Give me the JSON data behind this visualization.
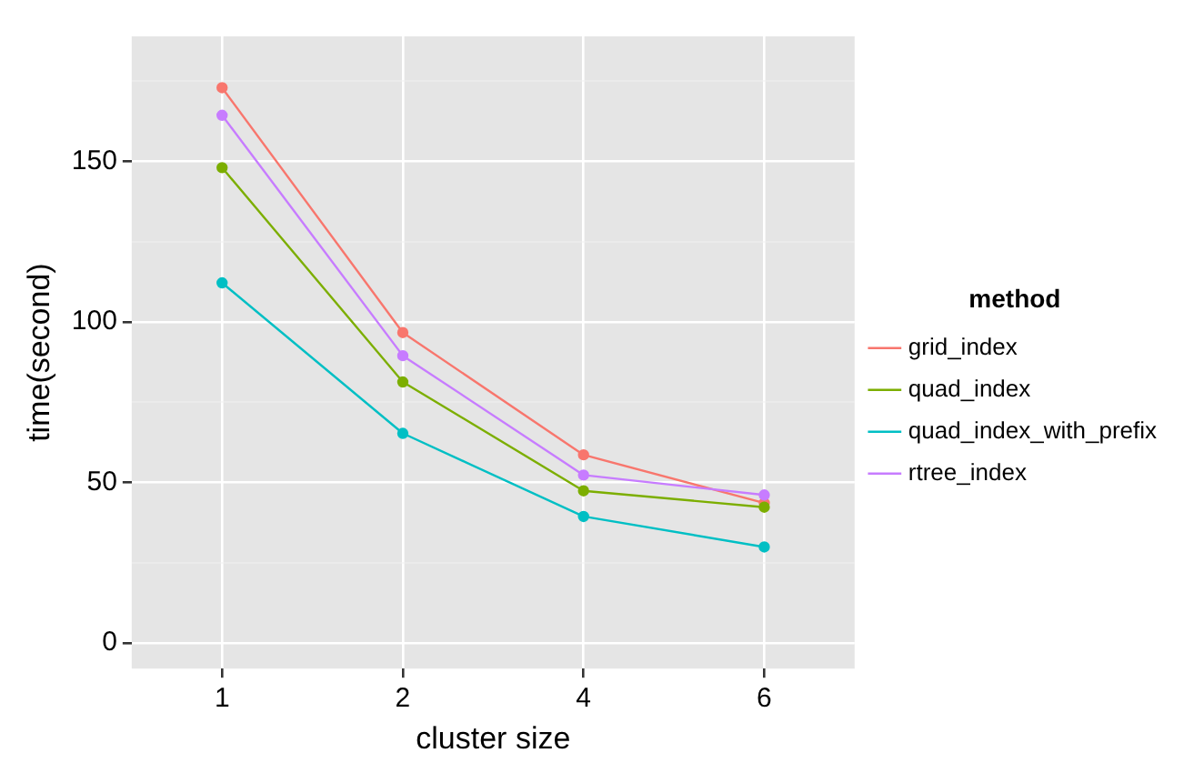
{
  "chart_data": {
    "type": "line",
    "xlabel": "cluster size",
    "ylabel": "time(second)",
    "legend_title": "method",
    "categories": [
      "1",
      "2",
      "4",
      "6"
    ],
    "series": [
      {
        "name": "grid_index",
        "color": "#f8766d",
        "values": [
          173,
          96.7,
          58.6,
          43.6
        ]
      },
      {
        "name": "quad_index",
        "color": "#7cae00",
        "values": [
          148.1,
          81.3,
          47.4,
          42.3
        ]
      },
      {
        "name": "quad_index_with_prefix",
        "color": "#00bfc4",
        "values": [
          112.2,
          65.3,
          39.4,
          29.9
        ]
      },
      {
        "name": "rtree_index",
        "color": "#c77cff",
        "values": [
          164.4,
          89.5,
          52.3,
          46.1
        ]
      }
    ],
    "ylim": [
      -8,
      189
    ],
    "yticks": [
      0,
      {
        "value": 25,
        "label": null
      },
      50,
      {
        "value": 75,
        "label": null
      },
      100,
      {
        "value": 125,
        "label": null
      },
      150,
      {
        "value": 175,
        "label": null
      }
    ],
    "grid": true,
    "legend": "right",
    "marker": "circle",
    "line_style": "solid"
  }
}
